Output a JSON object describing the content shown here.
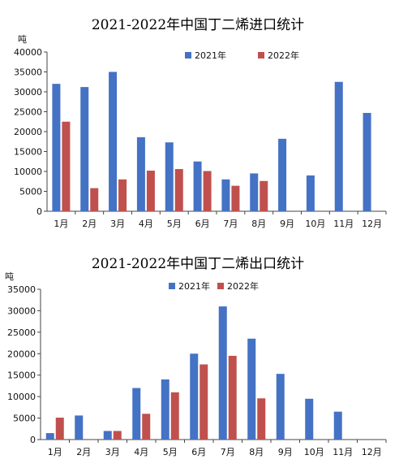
{
  "chart_data": [
    {
      "type": "bar",
      "title": "2021-2022年中国丁二烯进口统计",
      "ylabel": "吨",
      "categories": [
        "1月",
        "2月",
        "3月",
        "4月",
        "5月",
        "6月",
        "7月",
        "8月",
        "9月",
        "10月",
        "11月",
        "12月"
      ],
      "ylim": [
        0,
        40000
      ],
      "yticks": [
        0,
        5000,
        10000,
        15000,
        20000,
        25000,
        30000,
        35000,
        40000
      ],
      "grid": false,
      "legend_position": "top",
      "series": [
        {
          "name": "2021年",
          "color": "#4472c4",
          "values": [
            32000,
            31200,
            35000,
            18600,
            17300,
            12500,
            8000,
            9500,
            18200,
            9000,
            32500,
            24700
          ]
        },
        {
          "name": "2022年",
          "color": "#c0504d",
          "values": [
            22500,
            5800,
            8000,
            10200,
            10600,
            10100,
            6400,
            7600,
            null,
            null,
            null,
            null
          ]
        }
      ]
    },
    {
      "type": "bar",
      "title": "2021-2022年中国丁二烯出口统计",
      "ylabel": "吨",
      "categories": [
        "1月",
        "2月",
        "3月",
        "4月",
        "5月",
        "6月",
        "7月",
        "8月",
        "9月",
        "10月",
        "11月",
        "12月"
      ],
      "ylim": [
        0,
        35000
      ],
      "yticks": [
        0,
        5000,
        10000,
        15000,
        20000,
        25000,
        30000,
        35000
      ],
      "grid": false,
      "legend_position": "top",
      "series": [
        {
          "name": "2021年",
          "color": "#4472c4",
          "values": [
            1500,
            5600,
            2000,
            12000,
            14000,
            20000,
            31000,
            23500,
            15300,
            9500,
            6500,
            null
          ]
        },
        {
          "name": "2022年",
          "color": "#c0504d",
          "values": [
            5100,
            null,
            2000,
            6000,
            11000,
            17500,
            19500,
            9600,
            null,
            null,
            null,
            null
          ]
        }
      ]
    }
  ]
}
